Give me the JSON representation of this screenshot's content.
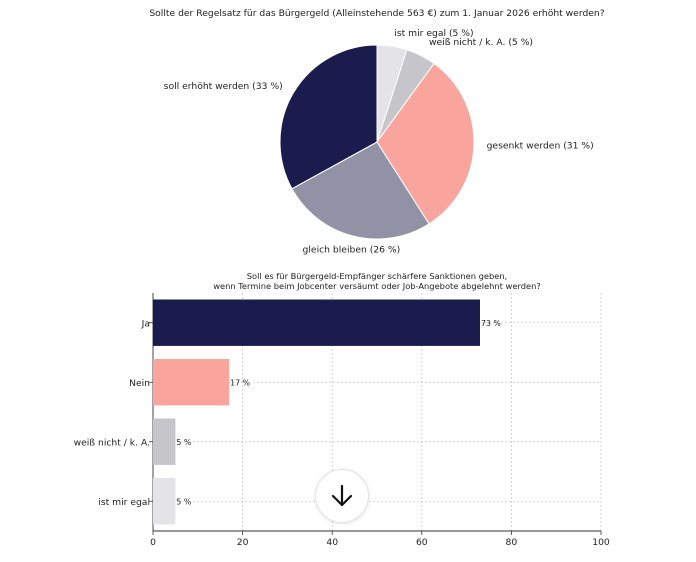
{
  "colors": {
    "navy": "#1c1b4d",
    "salmon": "#f9a59d",
    "slate": "#9292a6",
    "gray": "#c6c5c9",
    "light": "#e4e3e8",
    "grid": "#c9c4dd"
  },
  "scroll_button": {
    "icon": "arrow-down-icon"
  },
  "chart_data": [
    {
      "type": "pie",
      "title": "Sollte der Regelsatz für das Bürgergeld (Alleinstehende 563 €) zum 1. Januar 2026 erhöht werden?",
      "slices": [
        {
          "label": "ist mir egal (5 %)",
          "value": 5,
          "color": "#e4e3e8"
        },
        {
          "label": "weiß nicht / k. A. (5 %)",
          "value": 5,
          "color": "#c6c5c9"
        },
        {
          "label": "gesenkt werden (31 %)",
          "value": 31,
          "color": "#f9a59d"
        },
        {
          "label": "gleich bleiben (26 %)",
          "value": 26,
          "color": "#9292a6"
        },
        {
          "label": "soll erhöht werden (33 %)",
          "value": 33,
          "color": "#1c1b4d"
        }
      ]
    },
    {
      "type": "bar",
      "orientation": "horizontal",
      "title_lines": [
        "Soll es für Bürgergeld-Empfänger schärfere Sanktionen geben,",
        "wenn Termine beim Jobcenter versäumt oder Job-Angebote abgelehnt werden?"
      ],
      "categories": [
        "Ja",
        "Nein",
        "weiß nicht / k. A.",
        "ist mir egal"
      ],
      "values": [
        73,
        17,
        5,
        5
      ],
      "value_labels": [
        "73 %",
        "17 %",
        "5 %",
        "5 %"
      ],
      "colors": [
        "#1c1b4d",
        "#f9a59d",
        "#c6c5c9",
        "#e4e3e8"
      ],
      "xlim": [
        0,
        100
      ],
      "xticks": [
        0,
        20,
        40,
        60,
        80,
        100
      ],
      "grid": true
    }
  ]
}
